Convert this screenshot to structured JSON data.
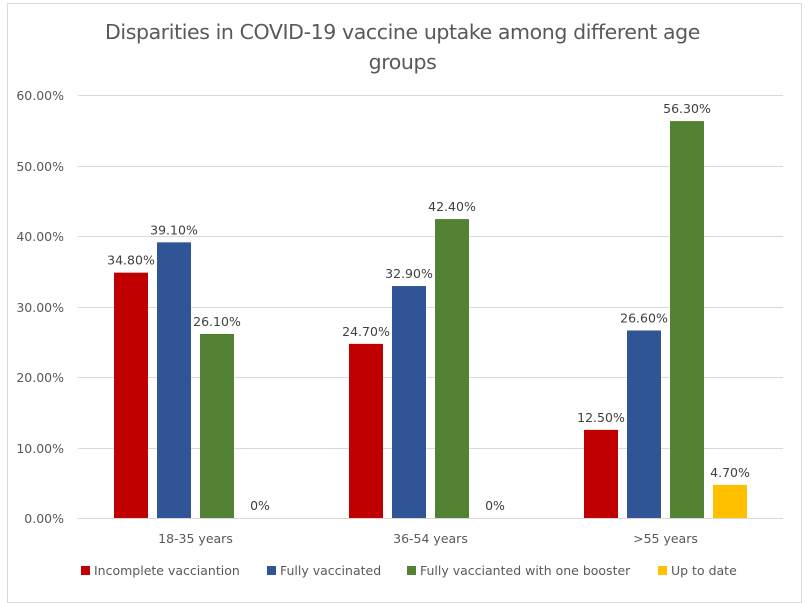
{
  "chart_data": {
    "type": "bar",
    "title": "Disparities in COVID-19 vaccine uptake among different age groups",
    "title_lines": [
      "Disparities in COVID-19 vaccine uptake among different age",
      "groups"
    ],
    "xlabel": "",
    "ylabel": "",
    "categories": [
      "18-35 years",
      "36-54 years",
      ">55 years"
    ],
    "series": [
      {
        "name": "Incomplete vacciantion",
        "color": "#c00000",
        "values": [
          34.8,
          24.7,
          12.5
        ],
        "labels": [
          "34.80%",
          "24.70%",
          "12.50%"
        ]
      },
      {
        "name": "Fully vaccinated",
        "color": "#2f5597",
        "values": [
          39.1,
          32.9,
          26.6
        ],
        "labels": [
          "39.10%",
          "32.90%",
          "26.60%"
        ]
      },
      {
        "name": "Fully vaccianted with one booster",
        "color": "#548235",
        "values": [
          26.1,
          42.4,
          56.3
        ],
        "labels": [
          "26.10%",
          "42.40%",
          "56.30%"
        ]
      },
      {
        "name": "Up to date",
        "color": "#ffc000",
        "values": [
          0,
          0,
          4.7
        ],
        "labels": [
          "0%",
          "0%",
          "4.70%"
        ]
      }
    ],
    "ylim": [
      0,
      60
    ],
    "yticks": [
      0,
      10,
      20,
      30,
      40,
      50,
      60
    ],
    "ytick_labels": [
      "0.00%",
      "10.00%",
      "20.00%",
      "30.00%",
      "40.00%",
      "50.00%",
      "60.00%"
    ],
    "grid": true,
    "legend_position": "bottom",
    "units": "percent"
  }
}
